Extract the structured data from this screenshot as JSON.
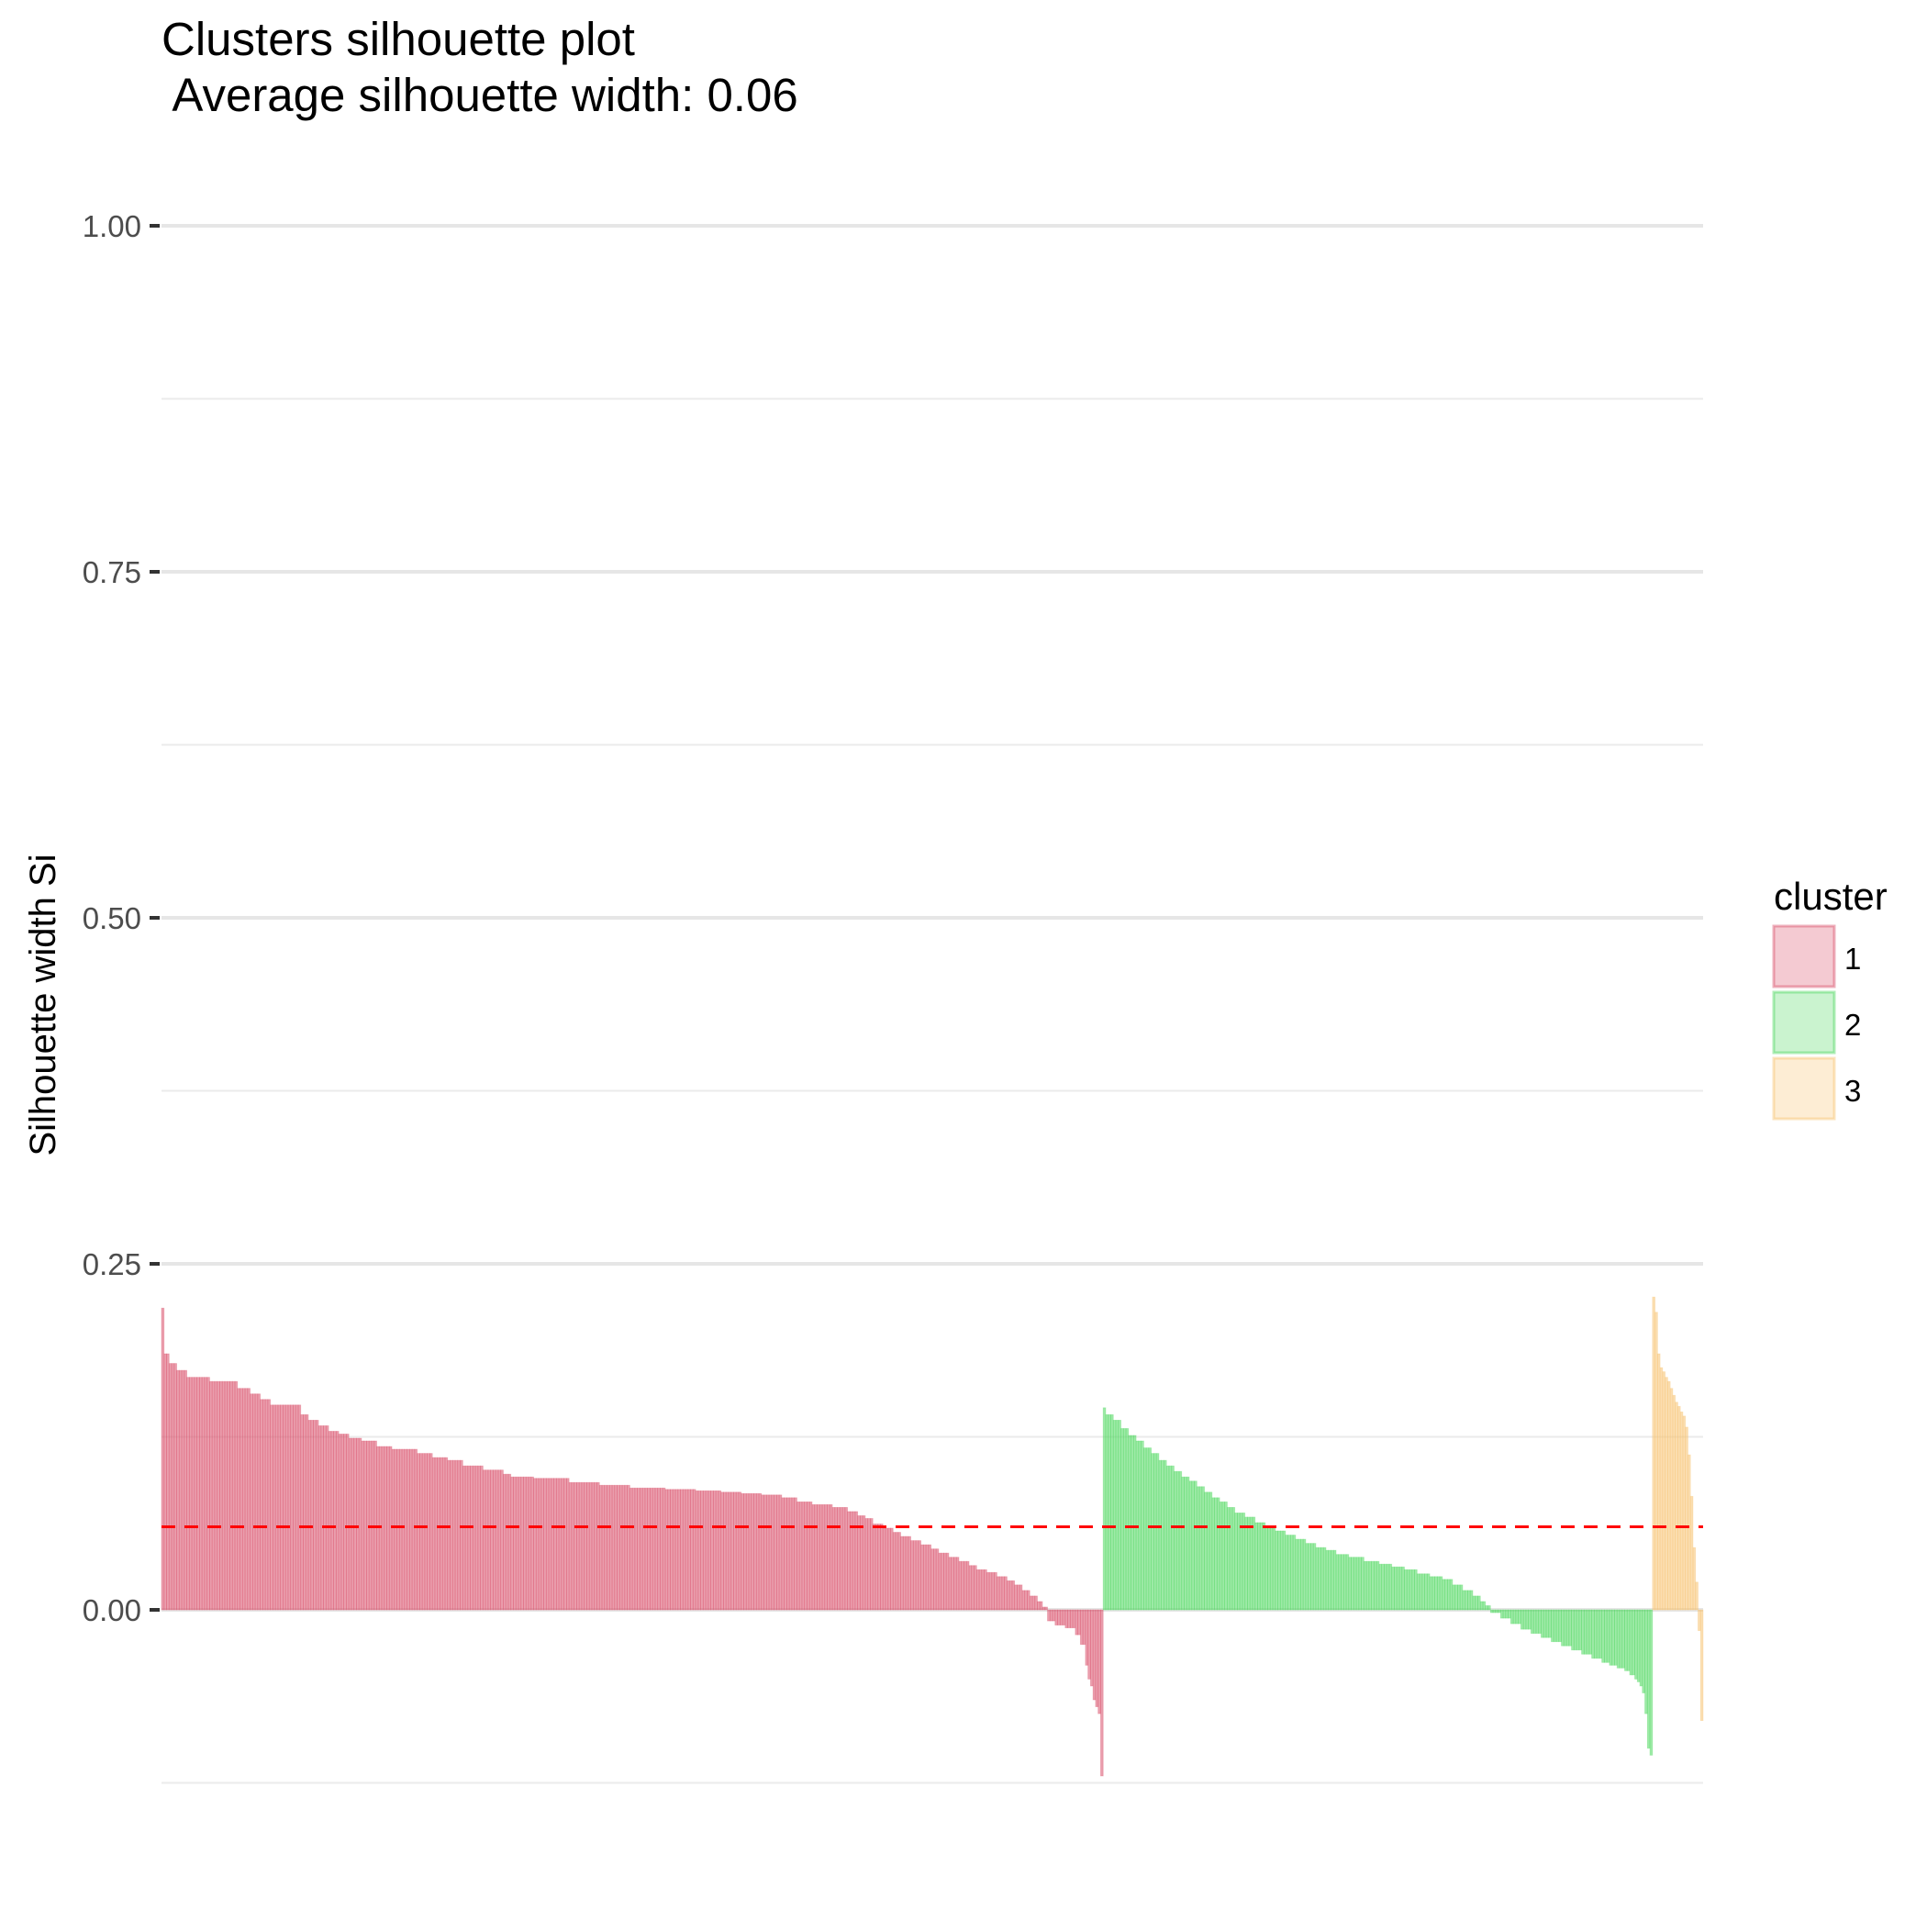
{
  "chart_data": {
    "type": "bar",
    "title": "Clusters silhouette plot",
    "subtitle": " Average silhouette width: 0.06",
    "ylabel": "Silhouette width Si",
    "xlabel": "",
    "ylim": [
      -0.125,
      1.0
    ],
    "y_ticks": [
      0.0,
      0.25,
      0.5,
      0.75,
      1.0
    ],
    "y_tick_labels": [
      "0.00",
      "0.25",
      "0.50",
      "0.75",
      "1.00"
    ],
    "grid": true,
    "legend": {
      "title": "cluster",
      "position": "right"
    },
    "average_line": {
      "value": 0.06,
      "color": "#ff0000",
      "style": "dashed"
    },
    "series": [
      {
        "name": "1",
        "color": "#d94f6a",
        "segments": [
          [
            1,
            0.218
          ],
          [
            2,
            0.185
          ],
          [
            3,
            0.178
          ],
          [
            4,
            0.173
          ],
          [
            9,
            0.168
          ],
          [
            11,
            0.165
          ],
          [
            5,
            0.16
          ],
          [
            4,
            0.156
          ],
          [
            4,
            0.152
          ],
          [
            12,
            0.148
          ],
          [
            3,
            0.141
          ],
          [
            4,
            0.137
          ],
          [
            4,
            0.133
          ],
          [
            4,
            0.129
          ],
          [
            4,
            0.127
          ],
          [
            5,
            0.124
          ],
          [
            6,
            0.122
          ],
          [
            6,
            0.118
          ],
          [
            10,
            0.116
          ],
          [
            6,
            0.113
          ],
          [
            6,
            0.11
          ],
          [
            6,
            0.108
          ],
          [
            8,
            0.104
          ],
          [
            8,
            0.101
          ],
          [
            3,
            0.098
          ],
          [
            9,
            0.096
          ],
          [
            14,
            0.095
          ],
          [
            12,
            0.092
          ],
          [
            12,
            0.09
          ],
          [
            14,
            0.088
          ],
          [
            12,
            0.087
          ],
          [
            10,
            0.086
          ],
          [
            8,
            0.085
          ],
          [
            8,
            0.084
          ],
          [
            8,
            0.083
          ],
          [
            6,
            0.081
          ],
          [
            6,
            0.078
          ],
          [
            8,
            0.076
          ],
          [
            6,
            0.074
          ],
          [
            4,
            0.071
          ],
          [
            3,
            0.068
          ],
          [
            3,
            0.066
          ],
          [
            4,
            0.062
          ],
          [
            4,
            0.059
          ],
          [
            3,
            0.056
          ],
          [
            4,
            0.053
          ],
          [
            4,
            0.05
          ],
          [
            4,
            0.047
          ],
          [
            3,
            0.044
          ],
          [
            4,
            0.041
          ],
          [
            4,
            0.038
          ],
          [
            4,
            0.035
          ],
          [
            3,
            0.032
          ],
          [
            4,
            0.029
          ],
          [
            4,
            0.027
          ],
          [
            4,
            0.024
          ],
          [
            3,
            0.021
          ],
          [
            3,
            0.018
          ],
          [
            3,
            0.014
          ],
          [
            3,
            0.01
          ],
          [
            2,
            0.006
          ],
          [
            2,
            0.002
          ],
          [
            3,
            -0.008
          ],
          [
            4,
            -0.011
          ],
          [
            4,
            -0.013
          ],
          [
            2,
            -0.018
          ],
          [
            2,
            -0.025
          ],
          [
            1,
            -0.04
          ],
          [
            1,
            -0.05
          ],
          [
            1,
            -0.055
          ],
          [
            1,
            -0.065
          ],
          [
            1,
            -0.07
          ],
          [
            1,
            -0.075
          ],
          [
            1,
            -0.12
          ]
        ]
      },
      {
        "name": "2",
        "color": "#4ed85f",
        "segments": [
          [
            1,
            0.146
          ],
          [
            3,
            0.141
          ],
          [
            3,
            0.137
          ],
          [
            3,
            0.131
          ],
          [
            3,
            0.126
          ],
          [
            3,
            0.122
          ],
          [
            3,
            0.117
          ],
          [
            3,
            0.113
          ],
          [
            3,
            0.108
          ],
          [
            3,
            0.104
          ],
          [
            3,
            0.1
          ],
          [
            3,
            0.096
          ],
          [
            3,
            0.093
          ],
          [
            3,
            0.089
          ],
          [
            3,
            0.085
          ],
          [
            3,
            0.081
          ],
          [
            3,
            0.078
          ],
          [
            3,
            0.074
          ],
          [
            4,
            0.07
          ],
          [
            4,
            0.067
          ],
          [
            4,
            0.063
          ],
          [
            4,
            0.06
          ],
          [
            4,
            0.057
          ],
          [
            4,
            0.054
          ],
          [
            4,
            0.051
          ],
          [
            4,
            0.048
          ],
          [
            4,
            0.045
          ],
          [
            4,
            0.043
          ],
          [
            5,
            0.04
          ],
          [
            6,
            0.038
          ],
          [
            6,
            0.035
          ],
          [
            5,
            0.033
          ],
          [
            5,
            0.031
          ],
          [
            5,
            0.029
          ],
          [
            5,
            0.026
          ],
          [
            5,
            0.024
          ],
          [
            4,
            0.022
          ],
          [
            4,
            0.018
          ],
          [
            4,
            0.014
          ],
          [
            3,
            0.01
          ],
          [
            2,
            0.006
          ],
          [
            2,
            0.003
          ],
          [
            4,
            -0.002
          ],
          [
            4,
            -0.006
          ],
          [
            4,
            -0.01
          ],
          [
            4,
            -0.014
          ],
          [
            4,
            -0.017
          ],
          [
            4,
            -0.02
          ],
          [
            4,
            -0.023
          ],
          [
            4,
            -0.026
          ],
          [
            4,
            -0.029
          ],
          [
            4,
            -0.032
          ],
          [
            4,
            -0.035
          ],
          [
            3,
            -0.038
          ],
          [
            3,
            -0.04
          ],
          [
            3,
            -0.042
          ],
          [
            2,
            -0.044
          ],
          [
            2,
            -0.047
          ],
          [
            1,
            -0.05
          ],
          [
            1,
            -0.052
          ],
          [
            1,
            -0.055
          ],
          [
            1,
            -0.06
          ],
          [
            1,
            -0.075
          ],
          [
            1,
            -0.1
          ],
          [
            1,
            -0.105
          ]
        ]
      },
      {
        "name": "3",
        "color": "#f7c371",
        "segments": [
          [
            1,
            0.226
          ],
          [
            1,
            0.215
          ],
          [
            1,
            0.185
          ],
          [
            1,
            0.175
          ],
          [
            1,
            0.172
          ],
          [
            1,
            0.168
          ],
          [
            1,
            0.165
          ],
          [
            1,
            0.16
          ],
          [
            1,
            0.155
          ],
          [
            1,
            0.15
          ],
          [
            1,
            0.147
          ],
          [
            1,
            0.143
          ],
          [
            1,
            0.14
          ],
          [
            1,
            0.132
          ],
          [
            1,
            0.112
          ],
          [
            1,
            0.082
          ],
          [
            1,
            0.045
          ],
          [
            1,
            0.02
          ],
          [
            1,
            -0.015
          ],
          [
            1,
            -0.08
          ]
        ]
      }
    ]
  }
}
